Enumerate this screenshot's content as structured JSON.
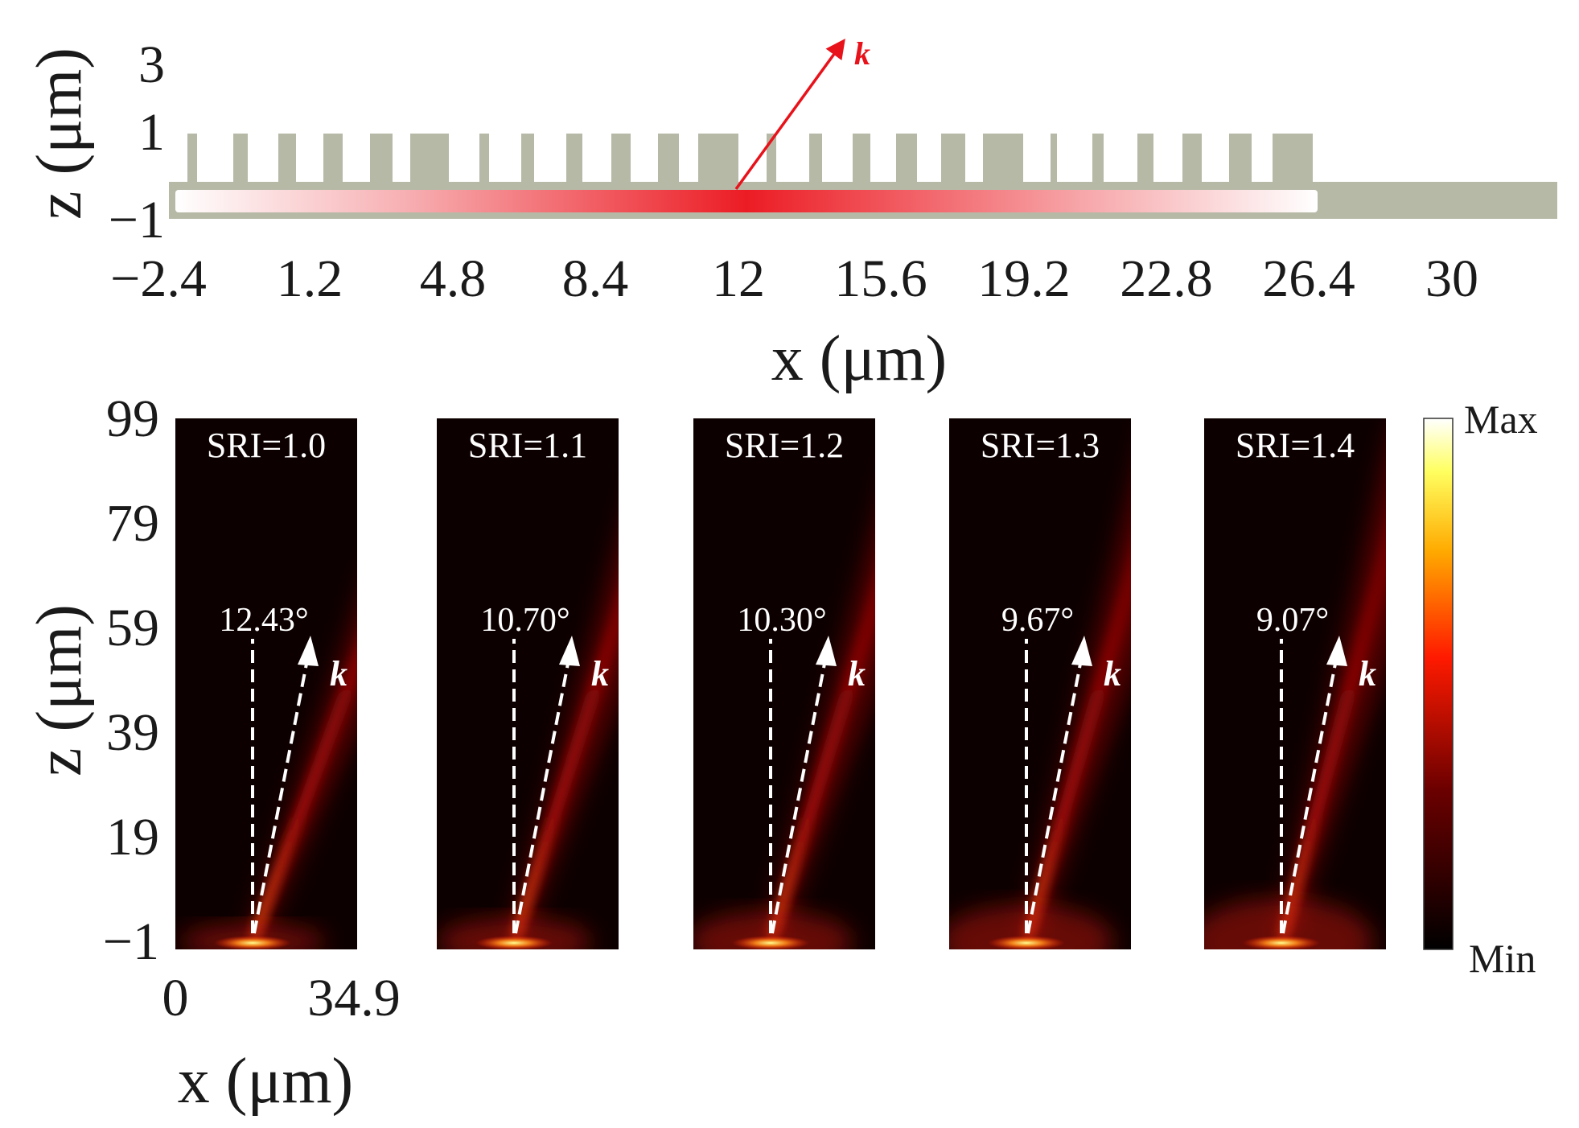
{
  "top_panel": {
    "y_axis_title": "z (μm)",
    "y_ticks": [
      "3",
      "1",
      "−1"
    ],
    "x_axis_title": "x (μm)",
    "x_ticks": [
      "−2.4",
      "1.2",
      "4.8",
      "8.4",
      "12",
      "15.6",
      "19.2",
      "22.8",
      "26.4",
      "30"
    ],
    "wave_vector_label": "k",
    "grating_color": "#b7b9a7",
    "field_color": "#ec1c24"
  },
  "bottom_panel": {
    "y_axis_title": "z (μm)",
    "y_ticks": [
      "99",
      "79",
      "59",
      "39",
      "19",
      "−1"
    ],
    "x_axis_title": "x (μm)",
    "x_ticks": [
      "0",
      "34.9"
    ],
    "panels": [
      {
        "sri_label": "SRI=1.0",
        "angle_label": "12.43°",
        "angle_deg": 12.43,
        "k_label": "k"
      },
      {
        "sri_label": "SRI=1.1",
        "angle_label": "10.70°",
        "angle_deg": 10.7,
        "k_label": "k"
      },
      {
        "sri_label": "SRI=1.2",
        "angle_label": "10.30°",
        "angle_deg": 10.3,
        "k_label": "k"
      },
      {
        "sri_label": "SRI=1.3",
        "angle_label": "9.67°",
        "angle_deg": 9.67,
        "k_label": "k"
      },
      {
        "sri_label": "SRI=1.4",
        "angle_label": "9.07°",
        "angle_deg": 9.07,
        "k_label": "k"
      }
    ],
    "colorbar": {
      "max_label": "Max",
      "min_label": "Min"
    }
  }
}
